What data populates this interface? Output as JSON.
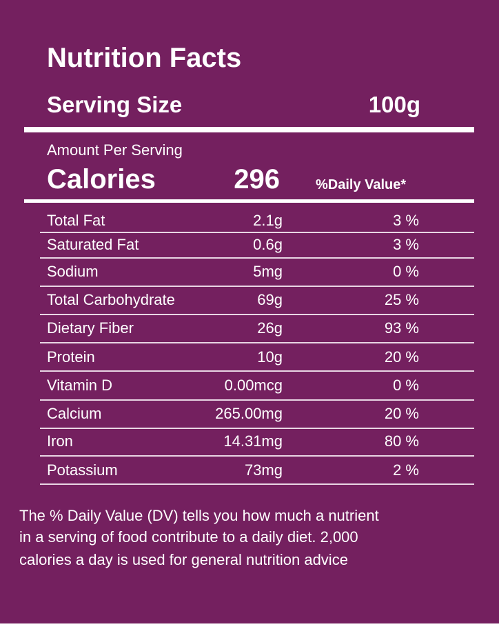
{
  "header": {
    "title": "Nutrition Facts",
    "serving_label": "Serving Size",
    "serving_value": "100g"
  },
  "calories": {
    "amount_label": "Amount Per Serving",
    "label": "Calories",
    "value": "296",
    "dv_header": "%Daily Value*"
  },
  "table": {
    "rows": [
      [
        "Total Fat",
        "2.1g",
        "3 %"
      ],
      [
        "Saturated Fat",
        "0.6g",
        "3 %"
      ],
      [
        "Sodium",
        "5mg",
        "0 %"
      ],
      [
        "Total Carbohydrate",
        "69g",
        "25 %"
      ],
      [
        "Dietary Fiber",
        "26g",
        "93 %"
      ],
      [
        "Protein",
        "10g",
        "20 %"
      ],
      [
        "Vitamin D",
        "0.00mcg",
        "0 %"
      ],
      [
        "Calcium",
        "265.00mg",
        "20 %"
      ],
      [
        "Iron",
        "14.31mg",
        "80 %"
      ],
      [
        "Potassium",
        "73mg",
        "2 %"
      ]
    ]
  },
  "footer": {
    "lines": [
      "The % Daily Value (DV) tells you how much a nutrient",
      "in a serving of food contribute to a daily diet. 2,000",
      "calories a day is used for general nutrition advice"
    ]
  }
}
